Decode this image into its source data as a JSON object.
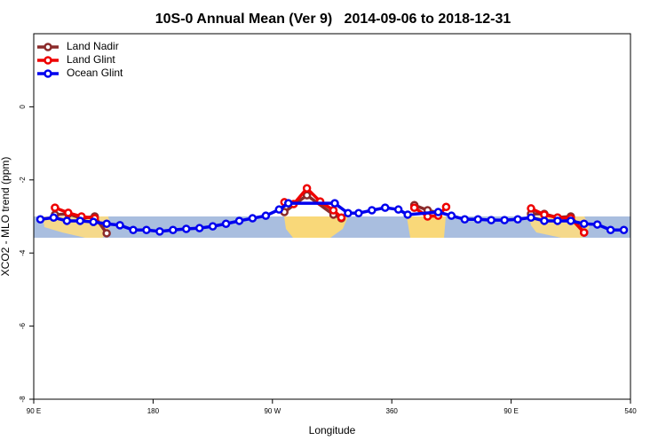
{
  "chart_data": {
    "type": "line",
    "title": "10S-0 Annual Mean (Ver 9)   2014-09-06 to 2018-12-31",
    "x_label": "Longitude",
    "y_label": "XCO2 - MLO trend (ppm)",
    "xlim": [
      90,
      540
    ],
    "xticks": [
      {
        "value": 90,
        "label": "90 E"
      },
      180,
      {
        "value": 270,
        "label": "90 W"
      },
      360,
      {
        "value": 450,
        "label": "90 E"
      },
      540
    ],
    "ylim": [
      -8,
      2
    ],
    "yticks": [
      -8,
      -6,
      -4,
      -2,
      0
    ],
    "legend": "top-left",
    "series": [
      {
        "name": "Land Nadir",
        "color": "#8b2a2a",
        "x": [
          106,
          116,
          126,
          136,
          145,
          null,
          279,
          296,
          316,
          322,
          null,
          377,
          387,
          395,
          null,
          465,
          475,
          485,
          495,
          505
        ],
        "values": [
          -2.95,
          -2.93,
          -3.05,
          -3.0,
          -3.46,
          null,
          -2.88,
          -2.42,
          -2.95,
          -3.05,
          null,
          -2.69,
          -2.83,
          -2.9,
          null,
          -2.93,
          -2.93,
          -3.03,
          -3.0,
          -3.44
        ]
      },
      {
        "name": "Land Glint",
        "color": "#ee0000",
        "x": [
          106,
          116,
          126,
          136,
          null,
          279,
          286,
          296,
          306,
          316,
          322,
          null,
          377,
          387,
          395,
          401,
          null,
          465,
          475,
          485,
          495,
          505
        ],
        "values": [
          -2.76,
          -2.9,
          -3.0,
          -3.05,
          null,
          -2.61,
          -2.66,
          -2.23,
          -2.59,
          -2.83,
          -3.03,
          null,
          -2.76,
          -3.0,
          -2.98,
          -2.74,
          null,
          -2.78,
          -2.95,
          -3.03,
          -3.05,
          -3.44
        ]
      },
      {
        "name": "Ocean Glint",
        "color": "#0000ee",
        "x": [
          95,
          105,
          115,
          125,
          135,
          145,
          155,
          165,
          175,
          185,
          195,
          205,
          215,
          225,
          235,
          245,
          255,
          265,
          275,
          282,
          317,
          327,
          335,
          345,
          355,
          365,
          372,
          395,
          405,
          415,
          425,
          435,
          445,
          455,
          465,
          475,
          485,
          495,
          505,
          515,
          525,
          535
        ],
        "values": [
          -3.08,
          -3.03,
          -3.12,
          -3.12,
          -3.15,
          -3.2,
          -3.24,
          -3.37,
          -3.37,
          -3.41,
          -3.37,
          -3.34,
          -3.32,
          -3.27,
          -3.2,
          -3.12,
          -3.05,
          -2.98,
          -2.81,
          -2.64,
          -2.64,
          -2.91,
          -2.91,
          -2.83,
          -2.76,
          -2.81,
          -2.95,
          -2.88,
          -2.98,
          -3.08,
          -3.08,
          -3.1,
          -3.1,
          -3.08,
          -3.03,
          -3.12,
          -3.12,
          -3.12,
          -3.2,
          -3.22,
          -3.37,
          -3.37
        ]
      }
    ]
  }
}
